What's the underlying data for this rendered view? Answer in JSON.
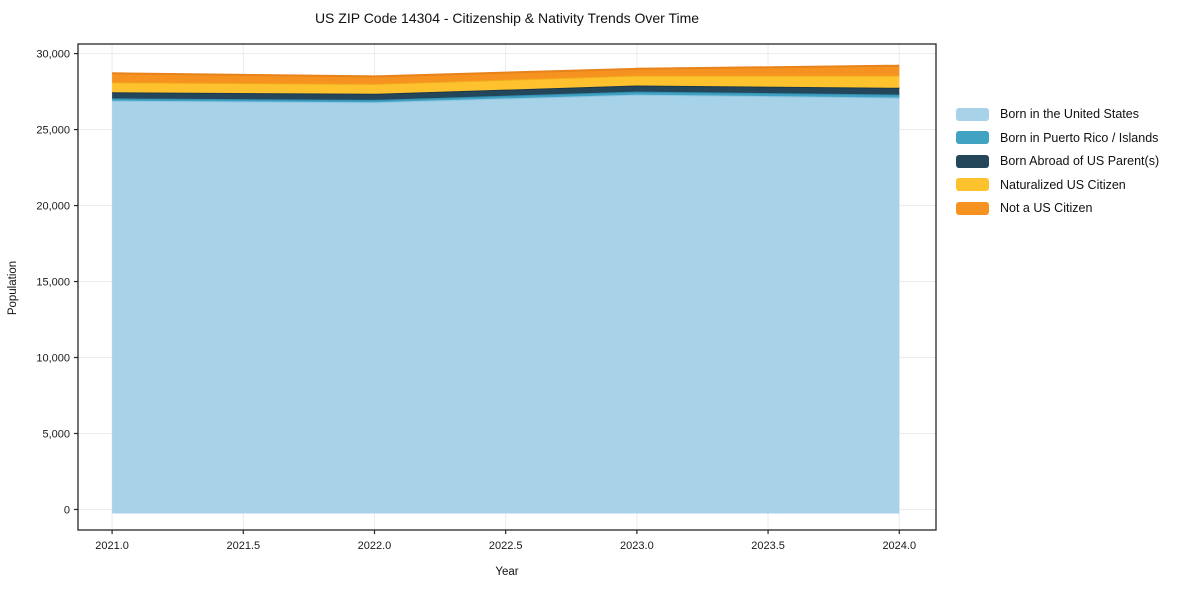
{
  "chart_data": {
    "type": "area",
    "stacked": true,
    "title": "US ZIP Code 14304 - Citizenship & Nativity Trends Over Time",
    "xlabel": "Year",
    "ylabel": "Population",
    "x": [
      2021,
      2022,
      2023,
      2024
    ],
    "series": [
      {
        "name": "Born in the United States",
        "values": [
          26900,
          26800,
          27300,
          27100
        ],
        "color": "#a7d2e8",
        "edge_color": "#8ec6e2"
      },
      {
        "name": "Born in Puerto Rico / Islands",
        "values": [
          150,
          150,
          200,
          200
        ],
        "color": "#42a2c2",
        "edge_color": "#3291b4"
      },
      {
        "name": "Born Abroad of US Parent(s)",
        "values": [
          400,
          400,
          400,
          450
        ],
        "color": "#23465b",
        "edge_color": "#1b3849"
      },
      {
        "name": "Naturalized US Citizen",
        "values": [
          650,
          650,
          650,
          800
        ],
        "color": "#fdc22e",
        "edge_color": "#f2ae1d"
      },
      {
        "name": "Not a US Citizen",
        "values": [
          600,
          500,
          450,
          650
        ],
        "color": "#f69320",
        "edge_color": "#e8821a"
      }
    ],
    "totals": [
      28700,
      28500,
      29000,
      29200
    ],
    "xlim": [
      2020.87,
      2024.14
    ],
    "ylim": [
      -1350,
      30630
    ],
    "xticks": [
      2021.0,
      2021.5,
      2022.0,
      2022.5,
      2023.0,
      2023.5,
      2024.0
    ],
    "yticks": [
      0,
      5000,
      10000,
      15000,
      20000,
      25000,
      30000
    ],
    "grid": true,
    "grid_color": "#ebebeb",
    "spine_color": "#262626",
    "legend_position": "right"
  }
}
